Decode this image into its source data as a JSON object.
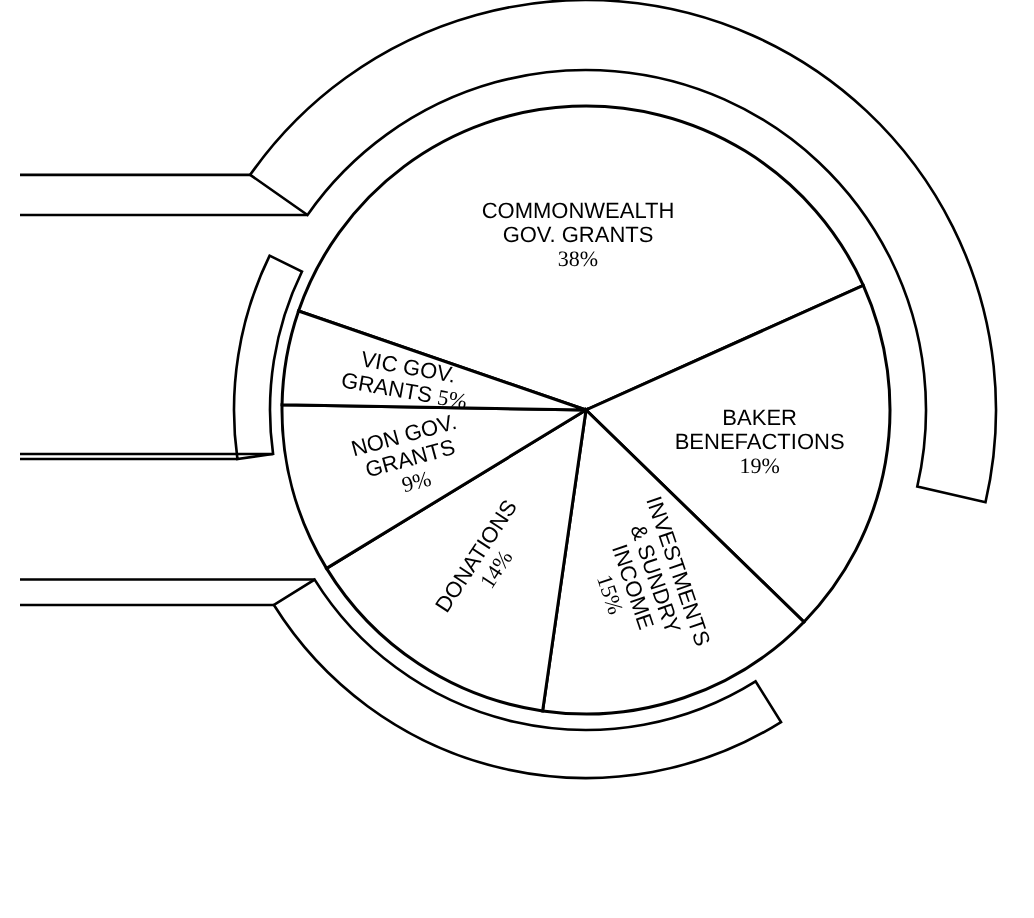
{
  "chart_data": {
    "type": "pie",
    "categories": [
      "COMMONWEALTH GOV. GRANTS",
      "BAKER BENEFACTIONS",
      "INVESTMENTS & SUNDRY INCOME",
      "DONATIONS",
      "NON GOV. GRANTS",
      "VIC GOV. GRANTS"
    ],
    "values": [
      38,
      19,
      15,
      14,
      9,
      5
    ],
    "value_labels": [
      "38%",
      "19%",
      "15%",
      "14%",
      "9%",
      "5%"
    ],
    "colors": [
      "#ffffff",
      "#ffffff",
      "#ffffff",
      "#ffffff",
      "#ffffff",
      "#ffffff"
    ]
  }
}
